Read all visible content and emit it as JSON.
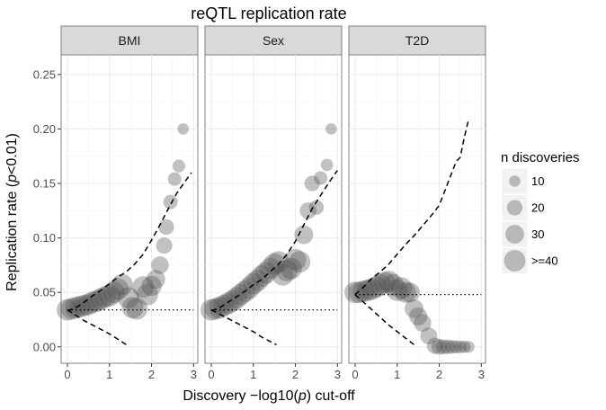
{
  "chart_data": {
    "type": "scatter",
    "title": "reQTL replication rate",
    "xlabel": "Discovery −log10(p) cut-off",
    "ylabel": "Replication rate (p<0.01)",
    "xlim": [
      -0.15,
      3.1
    ],
    "ylim": [
      -0.015,
      0.268
    ],
    "x_ticks": [
      0,
      1,
      2,
      3
    ],
    "y_ticks": [
      0.0,
      0.05,
      0.1,
      0.15,
      0.2,
      0.25
    ],
    "y_tick_labels": [
      "0.00",
      "0.05",
      "0.10",
      "0.15",
      "0.20",
      "0.25"
    ],
    "grid": true,
    "point_color": "#4d4d4d",
    "point_opacity": 0.35,
    "legend": {
      "title": "n discoveries",
      "placement": "right",
      "entries": [
        {
          "label": "10",
          "n": 10
        },
        {
          "label": "20",
          "n": 20
        },
        {
          "label": "30",
          "n": 30
        },
        {
          "label": ">=40",
          "n": 40
        }
      ]
    },
    "panels": [
      {
        "label": "BMI",
        "points": [
          {
            "x": 0.0,
            "y": 0.034,
            "n": 40
          },
          {
            "x": 0.1,
            "y": 0.035,
            "n": 40
          },
          {
            "x": 0.2,
            "y": 0.036,
            "n": 40
          },
          {
            "x": 0.3,
            "y": 0.037,
            "n": 40
          },
          {
            "x": 0.4,
            "y": 0.038,
            "n": 40
          },
          {
            "x": 0.5,
            "y": 0.039,
            "n": 40
          },
          {
            "x": 0.6,
            "y": 0.041,
            "n": 40
          },
          {
            "x": 0.7,
            "y": 0.042,
            "n": 40
          },
          {
            "x": 0.8,
            "y": 0.044,
            "n": 40
          },
          {
            "x": 0.9,
            "y": 0.046,
            "n": 40
          },
          {
            "x": 1.0,
            "y": 0.047,
            "n": 40
          },
          {
            "x": 1.1,
            "y": 0.05,
            "n": 40
          },
          {
            "x": 1.2,
            "y": 0.053,
            "n": 40
          },
          {
            "x": 1.3,
            "y": 0.057,
            "n": 40
          },
          {
            "x": 1.45,
            "y": 0.045,
            "n": 40
          },
          {
            "x": 1.55,
            "y": 0.036,
            "n": 40
          },
          {
            "x": 1.65,
            "y": 0.035,
            "n": 40
          },
          {
            "x": 1.8,
            "y": 0.055,
            "n": 40
          },
          {
            "x": 1.9,
            "y": 0.048,
            "n": 40
          },
          {
            "x": 2.0,
            "y": 0.056,
            "n": 35
          },
          {
            "x": 2.1,
            "y": 0.062,
            "n": 30
          },
          {
            "x": 2.2,
            "y": 0.075,
            "n": 26
          },
          {
            "x": 2.3,
            "y": 0.093,
            "n": 22
          },
          {
            "x": 2.35,
            "y": 0.11,
            "n": 20
          },
          {
            "x": 2.45,
            "y": 0.133,
            "n": 17
          },
          {
            "x": 2.55,
            "y": 0.154,
            "n": 15
          },
          {
            "x": 2.65,
            "y": 0.166,
            "n": 13
          },
          {
            "x": 2.75,
            "y": 0.2,
            "n": 10
          }
        ],
        "upper": [
          [
            0.0,
            0.033
          ],
          [
            0.2,
            0.036
          ],
          [
            0.4,
            0.041
          ],
          [
            0.6,
            0.047
          ],
          [
            0.8,
            0.052
          ],
          [
            1.0,
            0.058
          ],
          [
            1.2,
            0.064
          ],
          [
            1.4,
            0.069
          ],
          [
            1.6,
            0.076
          ],
          [
            1.8,
            0.085
          ],
          [
            2.0,
            0.098
          ],
          [
            2.2,
            0.112
          ],
          [
            2.4,
            0.127
          ],
          [
            2.6,
            0.141
          ],
          [
            2.8,
            0.152
          ],
          [
            2.95,
            0.16
          ]
        ],
        "lower": [
          [
            0.0,
            0.034
          ],
          [
            0.2,
            0.029
          ],
          [
            0.4,
            0.024
          ],
          [
            0.6,
            0.02
          ],
          [
            0.8,
            0.016
          ],
          [
            1.0,
            0.012
          ],
          [
            1.2,
            0.007
          ],
          [
            1.4,
            0.002
          ]
        ],
        "baseline": 0.034
      },
      {
        "label": "Sex",
        "points": [
          {
            "x": 0.0,
            "y": 0.034,
            "n": 40
          },
          {
            "x": 0.1,
            "y": 0.035,
            "n": 40
          },
          {
            "x": 0.2,
            "y": 0.036,
            "n": 40
          },
          {
            "x": 0.3,
            "y": 0.038,
            "n": 40
          },
          {
            "x": 0.4,
            "y": 0.04,
            "n": 40
          },
          {
            "x": 0.5,
            "y": 0.042,
            "n": 40
          },
          {
            "x": 0.6,
            "y": 0.045,
            "n": 40
          },
          {
            "x": 0.7,
            "y": 0.048,
            "n": 40
          },
          {
            "x": 0.8,
            "y": 0.051,
            "n": 40
          },
          {
            "x": 0.9,
            "y": 0.054,
            "n": 40
          },
          {
            "x": 1.0,
            "y": 0.058,
            "n": 40
          },
          {
            "x": 1.1,
            "y": 0.061,
            "n": 40
          },
          {
            "x": 1.2,
            "y": 0.065,
            "n": 40
          },
          {
            "x": 1.3,
            "y": 0.068,
            "n": 40
          },
          {
            "x": 1.4,
            "y": 0.072,
            "n": 40
          },
          {
            "x": 1.5,
            "y": 0.076,
            "n": 40
          },
          {
            "x": 1.6,
            "y": 0.078,
            "n": 40
          },
          {
            "x": 1.7,
            "y": 0.066,
            "n": 40
          },
          {
            "x": 1.8,
            "y": 0.07,
            "n": 40
          },
          {
            "x": 1.9,
            "y": 0.072,
            "n": 40
          },
          {
            "x": 2.0,
            "y": 0.08,
            "n": 40
          },
          {
            "x": 2.1,
            "y": 0.078,
            "n": 40
          },
          {
            "x": 2.2,
            "y": 0.103,
            "n": 30
          },
          {
            "x": 2.3,
            "y": 0.125,
            "n": 23
          },
          {
            "x": 2.4,
            "y": 0.15,
            "n": 20
          },
          {
            "x": 2.5,
            "y": 0.128,
            "n": 18
          },
          {
            "x": 2.6,
            "y": 0.155,
            "n": 15
          },
          {
            "x": 2.75,
            "y": 0.167,
            "n": 12
          },
          {
            "x": 2.85,
            "y": 0.2,
            "n": 10
          }
        ],
        "upper": [
          [
            0.0,
            0.033
          ],
          [
            0.2,
            0.036
          ],
          [
            0.4,
            0.041
          ],
          [
            0.6,
            0.046
          ],
          [
            0.8,
            0.051
          ],
          [
            1.0,
            0.057
          ],
          [
            1.2,
            0.062
          ],
          [
            1.4,
            0.069
          ],
          [
            1.6,
            0.076
          ],
          [
            1.8,
            0.085
          ],
          [
            2.0,
            0.097
          ],
          [
            2.2,
            0.112
          ],
          [
            2.4,
            0.127
          ],
          [
            2.6,
            0.139
          ],
          [
            2.8,
            0.151
          ],
          [
            3.0,
            0.162
          ]
        ],
        "lower": [
          [
            0.0,
            0.034
          ],
          [
            0.2,
            0.03
          ],
          [
            0.4,
            0.026
          ],
          [
            0.6,
            0.022
          ],
          [
            0.8,
            0.018
          ],
          [
            1.0,
            0.014
          ],
          [
            1.2,
            0.009
          ],
          [
            1.4,
            0.005
          ],
          [
            1.55,
            0.002
          ]
        ],
        "baseline": 0.034
      },
      {
        "label": "T2D",
        "points": [
          {
            "x": 0.0,
            "y": 0.05,
            "n": 40
          },
          {
            "x": 0.1,
            "y": 0.05,
            "n": 40
          },
          {
            "x": 0.2,
            "y": 0.051,
            "n": 40
          },
          {
            "x": 0.3,
            "y": 0.052,
            "n": 40
          },
          {
            "x": 0.4,
            "y": 0.053,
            "n": 40
          },
          {
            "x": 0.5,
            "y": 0.055,
            "n": 40
          },
          {
            "x": 0.6,
            "y": 0.057,
            "n": 40
          },
          {
            "x": 0.7,
            "y": 0.059,
            "n": 40
          },
          {
            "x": 0.8,
            "y": 0.06,
            "n": 40
          },
          {
            "x": 0.9,
            "y": 0.057,
            "n": 40
          },
          {
            "x": 1.0,
            "y": 0.052,
            "n": 40
          },
          {
            "x": 1.1,
            "y": 0.054,
            "n": 40
          },
          {
            "x": 1.2,
            "y": 0.05,
            "n": 38
          },
          {
            "x": 1.3,
            "y": 0.05,
            "n": 34
          },
          {
            "x": 1.4,
            "y": 0.035,
            "n": 30
          },
          {
            "x": 1.5,
            "y": 0.028,
            "n": 28
          },
          {
            "x": 1.6,
            "y": 0.022,
            "n": 26
          },
          {
            "x": 1.75,
            "y": 0.01,
            "n": 24
          },
          {
            "x": 1.9,
            "y": 0.001,
            "n": 22
          },
          {
            "x": 2.0,
            "y": 0.0,
            "n": 20
          },
          {
            "x": 2.1,
            "y": 0.0,
            "n": 18
          },
          {
            "x": 2.2,
            "y": 0.0,
            "n": 17
          },
          {
            "x": 2.3,
            "y": 0.0,
            "n": 15
          },
          {
            "x": 2.4,
            "y": 0.0,
            "n": 14
          },
          {
            "x": 2.5,
            "y": 0.0,
            "n": 13
          },
          {
            "x": 2.6,
            "y": 0.0,
            "n": 12
          },
          {
            "x": 2.7,
            "y": 0.0,
            "n": 11
          }
        ],
        "upper": [
          [
            0.0,
            0.048
          ],
          [
            0.2,
            0.055
          ],
          [
            0.4,
            0.063
          ],
          [
            0.6,
            0.069
          ],
          [
            0.8,
            0.076
          ],
          [
            1.0,
            0.085
          ],
          [
            1.2,
            0.094
          ],
          [
            1.4,
            0.102
          ],
          [
            1.6,
            0.111
          ],
          [
            1.8,
            0.12
          ],
          [
            2.0,
            0.13
          ],
          [
            2.2,
            0.15
          ],
          [
            2.4,
            0.17
          ],
          [
            2.5,
            0.174
          ],
          [
            2.6,
            0.193
          ],
          [
            2.7,
            0.209
          ]
        ],
        "lower": [
          [
            0.0,
            0.048
          ],
          [
            0.2,
            0.041
          ],
          [
            0.4,
            0.034
          ],
          [
            0.6,
            0.027
          ],
          [
            0.8,
            0.02
          ],
          [
            1.0,
            0.014
          ],
          [
            1.2,
            0.008
          ],
          [
            1.4,
            0.002
          ]
        ],
        "baseline": 0.048
      }
    ]
  }
}
